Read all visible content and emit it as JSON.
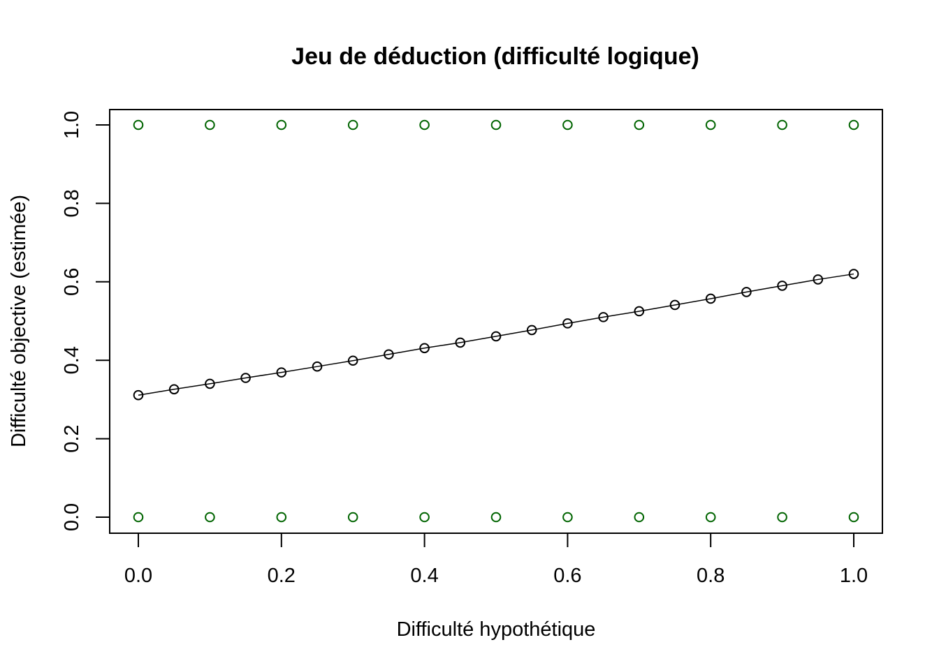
{
  "chart_data": {
    "type": "scatter",
    "title": "Jeu de déduction (difficulté logique)",
    "xlabel": "Difficulté hypothétique",
    "ylabel": "Difficulté objective (estimée)",
    "xlim": [
      0,
      1
    ],
    "ylim": [
      0,
      1
    ],
    "x_ticks": [
      "0.0",
      "0.2",
      "0.4",
      "0.6",
      "0.8",
      "1.0"
    ],
    "y_ticks": [
      "0.0",
      "0.2",
      "0.4",
      "0.6",
      "0.8",
      "1.0"
    ],
    "grid": false,
    "legend": "none",
    "series": [
      {
        "kind": "points-line",
        "color": "#000000",
        "x": [
          0.0,
          0.05,
          0.1,
          0.15,
          0.2,
          0.25,
          0.3,
          0.35,
          0.4,
          0.45,
          0.5,
          0.55,
          0.6,
          0.65,
          0.7,
          0.75,
          0.8,
          0.85,
          0.9,
          0.95,
          1.0
        ],
        "y": [
          0.311,
          0.326,
          0.34,
          0.355,
          0.369,
          0.384,
          0.399,
          0.415,
          0.431,
          0.445,
          0.461,
          0.477,
          0.494,
          0.51,
          0.525,
          0.541,
          0.557,
          0.574,
          0.59,
          0.606,
          0.62
        ]
      },
      {
        "kind": "points",
        "color": "#006400",
        "x": [
          0.0,
          0.1,
          0.2,
          0.3,
          0.4,
          0.5,
          0.6,
          0.7,
          0.8,
          0.9,
          1.0
        ],
        "y": [
          1,
          1,
          1,
          1,
          1,
          1,
          1,
          1,
          1,
          1,
          1
        ]
      },
      {
        "kind": "points",
        "color": "#006400",
        "x": [
          0.0,
          0.1,
          0.2,
          0.3,
          0.4,
          0.5,
          0.6,
          0.7,
          0.8,
          0.9,
          1.0
        ],
        "y": [
          0,
          0,
          0,
          0,
          0,
          0,
          0,
          0,
          0,
          0,
          0
        ]
      }
    ]
  }
}
